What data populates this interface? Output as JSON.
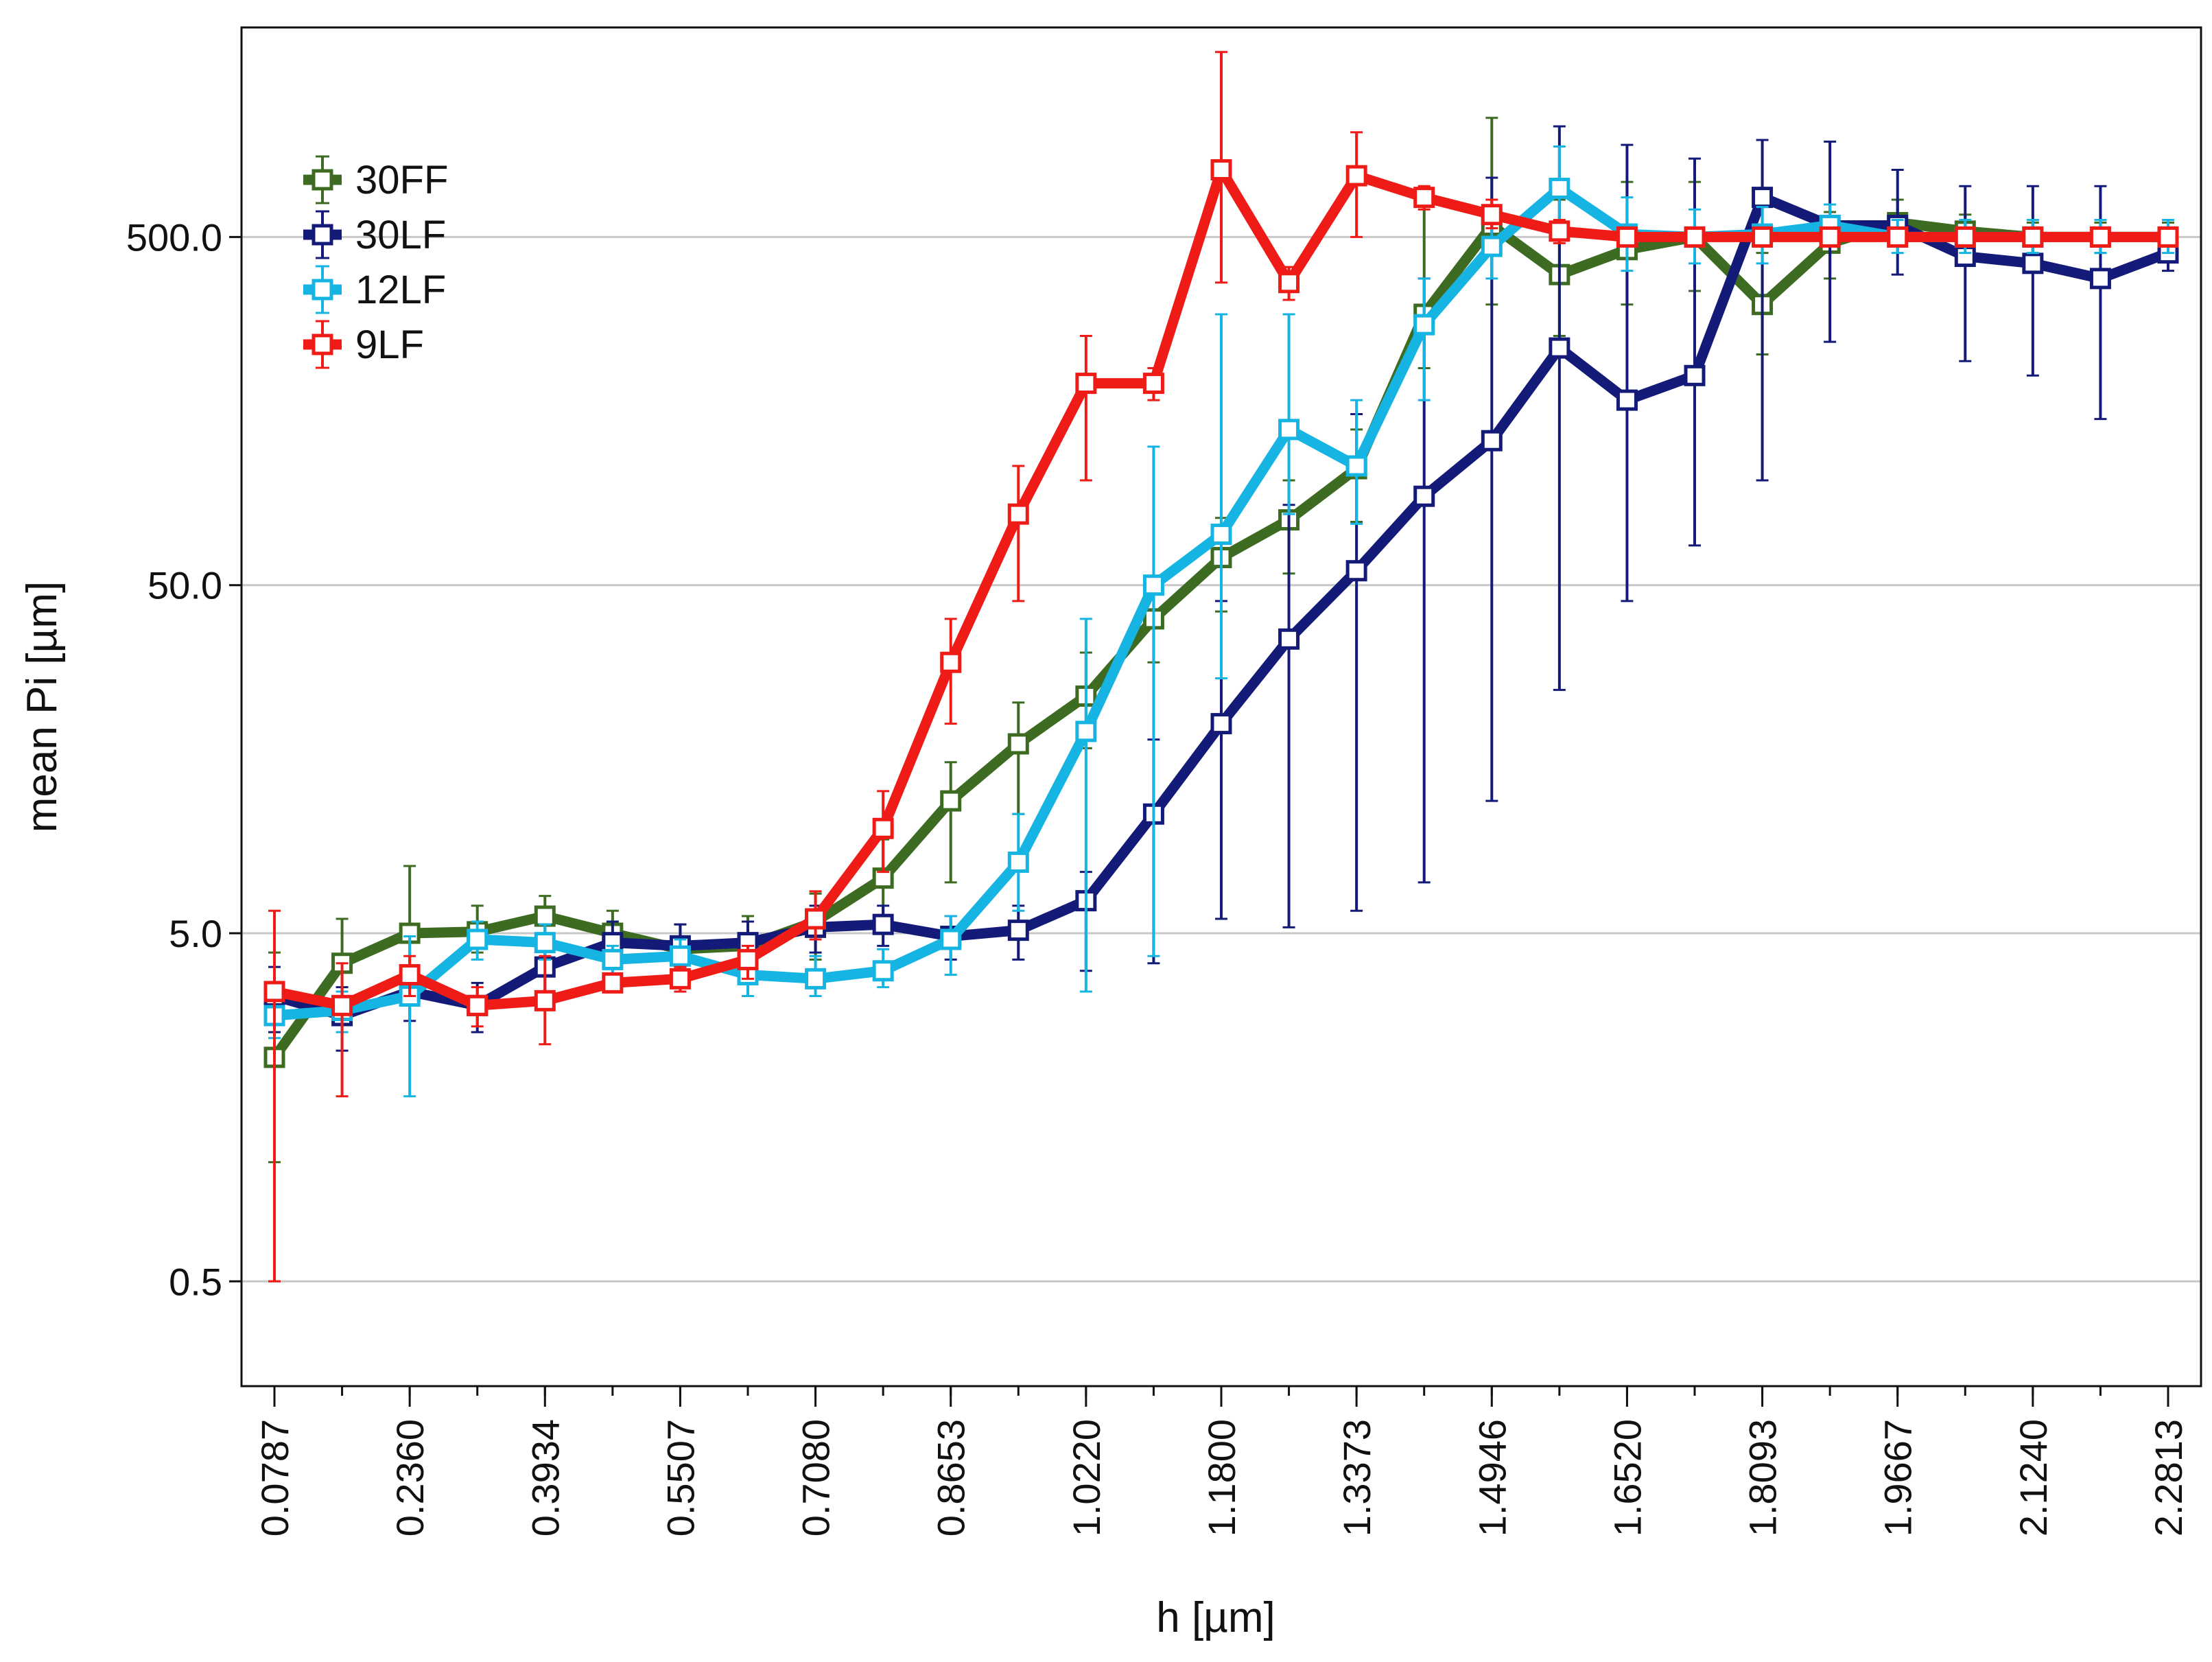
{
  "chart_data": {
    "type": "line",
    "title": "",
    "xlabel": "h [µm]",
    "ylabel": "mean Pi [µm]",
    "yscale": "log",
    "ylim": [
      0.25,
      2000
    ],
    "yticks": [
      0.5,
      5.0,
      50.0,
      500.0
    ],
    "ytick_labels": [
      "0.5",
      "5.0",
      "50.0",
      "500.0"
    ],
    "xtick_labels": [
      "0.0787",
      "0.2360",
      "0.3934",
      "0.5507",
      "0.7080",
      "0.8653",
      "1.0220",
      "1.1800",
      "1.3373",
      "1.4946",
      "1.6520",
      "1.8093",
      "1.9667",
      "2.1240",
      "2.2813"
    ],
    "xtick_indices": [
      0,
      2,
      4,
      6,
      8,
      10,
      12,
      14,
      16,
      18,
      20,
      22,
      24,
      26,
      28
    ],
    "n_points": 29,
    "grid": "horizontal",
    "legend_position": "top-left",
    "series": [
      {
        "name": "30FF",
        "color": "#3e6b22",
        "values": [
          2.2,
          4.1,
          5.0,
          5.05,
          5.6,
          5.0,
          4.5,
          4.6,
          5.4,
          7.2,
          12.0,
          17.5,
          24.0,
          40.0,
          60.0,
          77.0,
          108.0,
          300.0,
          540.0,
          390.0,
          460.0,
          500.0,
          320.0,
          480.0,
          550.0,
          520.0,
          500.0,
          500.0,
          500.0
        ],
        "err_low": [
          1.1,
          3.1,
          3.3,
          4.4,
          4.6,
          4.1,
          4.0,
          3.8,
          4.2,
          5.2,
          7.0,
          11.0,
          17.0,
          30.0,
          42.0,
          54.0,
          76.0,
          210.0,
          320.0,
          260.0,
          320.0,
          350.0,
          230.0,
          380.0,
          470.0,
          450.0,
          450.0,
          450.0,
          450.0
        ],
        "err_high": [
          4.4,
          5.5,
          7.8,
          6.0,
          6.4,
          5.8,
          5.3,
          5.6,
          6.5,
          9.3,
          15.5,
          23.0,
          32.0,
          52.0,
          78.0,
          100.0,
          140.0,
          690.0,
          1100.0,
          640.0,
          720.0,
          720.0,
          450.0,
          590.0,
          640.0,
          580.0,
          550.0,
          550.0,
          550.0
        ]
      },
      {
        "name": "30LF",
        "color": "#141a78",
        "values": [
          3.3,
          2.9,
          3.4,
          3.1,
          4.0,
          4.7,
          4.6,
          4.7,
          5.2,
          5.3,
          4.9,
          5.1,
          6.2,
          11.0,
          20.0,
          35.0,
          55.0,
          90.0,
          130.0,
          240.0,
          170.0,
          200.0,
          650.0,
          540.0,
          540.0,
          440.0,
          420.0,
          380.0,
          450.0
        ],
        "err_low": [
          2.6,
          2.3,
          2.8,
          2.6,
          3.4,
          4.0,
          4.0,
          4.0,
          4.4,
          4.6,
          4.2,
          4.2,
          3.9,
          4.1,
          5.5,
          5.2,
          5.8,
          7.0,
          12.0,
          25.0,
          45.0,
          65.0,
          100.0,
          250.0,
          390.0,
          220.0,
          200.0,
          150.0,
          400.0
        ],
        "err_high": [
          4.0,
          3.5,
          4.0,
          3.6,
          4.6,
          5.4,
          5.3,
          5.4,
          6.0,
          6.0,
          5.6,
          6.0,
          7.5,
          18.0,
          45.0,
          85.0,
          155.0,
          380.0,
          740.0,
          1040.0,
          920.0,
          840.0,
          950.0,
          940.0,
          780.0,
          700.0,
          700.0,
          700.0,
          530.0
        ]
      },
      {
        "name": "12LF",
        "color": "#16b4e2",
        "values": [
          2.9,
          3.0,
          3.3,
          4.8,
          4.7,
          4.2,
          4.3,
          3.8,
          3.7,
          3.9,
          4.8,
          8.0,
          19.0,
          50.0,
          70.0,
          140.0,
          110.0,
          280.0,
          470.0,
          690.0,
          510.0,
          500.0,
          510.0,
          540.0,
          500.0,
          500.0,
          500.0,
          500.0,
          500.0
        ],
        "err_low": [
          2.5,
          2.6,
          1.7,
          4.2,
          4.2,
          3.8,
          3.9,
          3.3,
          3.3,
          3.5,
          3.8,
          5.8,
          3.4,
          4.3,
          27.0,
          80.0,
          75.0,
          170.0,
          380.0,
          500.0,
          400.0,
          420.0,
          420.0,
          480.0,
          450.0,
          450.0,
          450.0,
          450.0,
          450.0
        ],
        "err_high": [
          3.3,
          3.4,
          4.9,
          5.4,
          5.3,
          4.6,
          4.8,
          4.4,
          4.3,
          4.5,
          5.6,
          11.0,
          40.0,
          125.0,
          300.0,
          300.0,
          170.0,
          380.0,
          600.0,
          910.0,
          650.0,
          600.0,
          610.0,
          620.0,
          560.0,
          560.0,
          560.0,
          560.0,
          560.0
        ]
      },
      {
        "name": "9LF",
        "color": "#ee1b17",
        "values": [
          3.4,
          3.1,
          3.8,
          3.1,
          3.2,
          3.6,
          3.7,
          4.2,
          5.5,
          10.0,
          30.0,
          80.0,
          190.0,
          190.0,
          780.0,
          370.0,
          750.0,
          650.0,
          580.0,
          520.0,
          500.0,
          500.0,
          500.0,
          500.0,
          500.0,
          500.0,
          500.0,
          500.0,
          500.0
        ],
        "err_low": [
          0.5,
          1.7,
          3.3,
          2.7,
          2.4,
          3.4,
          3.4,
          3.7,
          4.8,
          7.5,
          20.0,
          45.0,
          100.0,
          170.0,
          370.0,
          330.0,
          500.0,
          600.0,
          530.0,
          480.0,
          470.0,
          470.0,
          470.0,
          470.0,
          470.0,
          470.0,
          470.0,
          470.0,
          470.0
        ],
        "err_high": [
          5.8,
          4.1,
          4.3,
          3.5,
          4.3,
          3.8,
          4.0,
          4.6,
          6.6,
          12.8,
          40.0,
          110.0,
          260.0,
          210.0,
          1700.0,
          410.0,
          1000.0,
          700.0,
          640.0,
          560.0,
          530.0,
          530.0,
          530.0,
          530.0,
          530.0,
          530.0,
          530.0,
          530.0,
          530.0
        ]
      }
    ]
  }
}
